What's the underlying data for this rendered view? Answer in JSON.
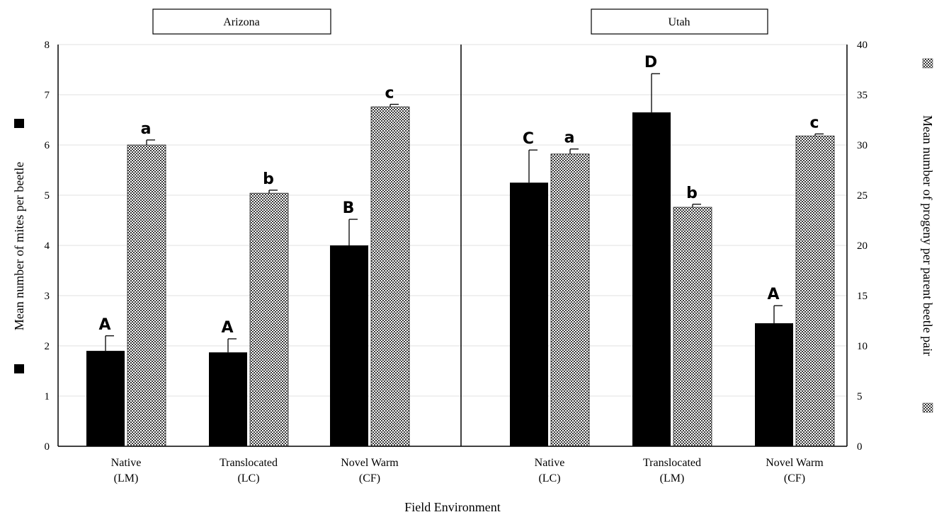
{
  "chart_data": {
    "type": "bar",
    "xlabel": "Field Environment",
    "ylabel_left": "Mean number of mites per beetle",
    "ylabel_right": "Mean number of progeny per parent beetle pair",
    "ylim_left": [
      0,
      8
    ],
    "ylim_right": [
      0,
      40
    ],
    "yticks_left": [
      "0",
      "1",
      "2",
      "3",
      "4",
      "5",
      "6",
      "7",
      "8"
    ],
    "yticks_right": [
      "0",
      "5",
      "10",
      "15",
      "20",
      "25",
      "30",
      "35",
      "40"
    ],
    "grid": true,
    "series": [
      {
        "name": "Mites",
        "axis": "left",
        "color": "#000000",
        "pattern": "solid"
      },
      {
        "name": "Progeny",
        "axis": "right",
        "color": "#6f6f6f",
        "pattern": "checkered"
      }
    ],
    "panels": [
      {
        "title": "Arizona",
        "groups": [
          {
            "label_line1": "Native",
            "label_line2": "(LM)",
            "mites": 1.9,
            "mites_err": 0.3,
            "mites_letter": "A",
            "progeny": 30.0,
            "progeny_err": 0.5,
            "progeny_letter": "a"
          },
          {
            "label_line1": "Translocated",
            "label_line2": "(LC)",
            "mites": 1.87,
            "mites_err": 0.27,
            "mites_letter": "A",
            "progeny": 25.2,
            "progeny_err": 0.3,
            "progeny_letter": "b"
          },
          {
            "label_line1": "Novel Warm",
            "label_line2": "(CF)",
            "mites": 4.0,
            "mites_err": 0.52,
            "mites_letter": "B",
            "progeny": 33.8,
            "progeny_err": 0.25,
            "progeny_letter": "c"
          }
        ]
      },
      {
        "title": "Utah",
        "groups": [
          {
            "label_line1": "Native",
            "label_line2": "(LC)",
            "mites": 5.25,
            "mites_err": 0.65,
            "mites_letter": "C",
            "progeny": 29.1,
            "progeny_err": 0.5,
            "progeny_letter": "a"
          },
          {
            "label_line1": "Translocated",
            "label_line2": "(LM)",
            "mites": 6.65,
            "mites_err": 0.77,
            "mites_letter": "D",
            "progeny": 23.8,
            "progeny_err": 0.3,
            "progeny_letter": "b"
          },
          {
            "label_line1": "Novel Warm",
            "label_line2": "(CF)",
            "mites": 2.45,
            "mites_err": 0.35,
            "mites_letter": "A",
            "progeny": 30.9,
            "progeny_err": 0.2,
            "progeny_letter": "c"
          }
        ]
      }
    ]
  }
}
